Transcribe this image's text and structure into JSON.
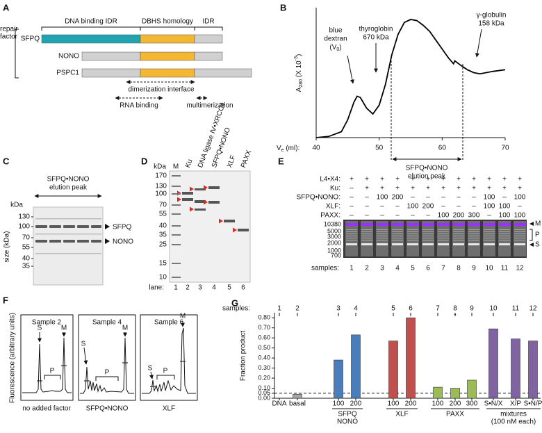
{
  "panels": {
    "A": {
      "label": "A",
      "headers": [
        "DNA binding IDR",
        "DBHS homology",
        "IDR"
      ],
      "group_label": [
        "repair",
        "factor"
      ],
      "proteins": [
        "SFPQ",
        "NONO",
        "PSPC1"
      ],
      "regions": [
        "dimerization interface",
        "RNA binding",
        "multimerization"
      ]
    },
    "C": {
      "label": "C",
      "title": [
        "SFPQ•NONO",
        "elution peak"
      ],
      "unit": "kDa",
      "ylabel": "size (kDa)",
      "markers": [
        130,
        100,
        70,
        55,
        40,
        35
      ],
      "bands": [
        "SFPQ",
        "NONO"
      ]
    },
    "D": {
      "label": "D",
      "unit": "kDa",
      "markers": [
        170,
        130,
        100,
        70,
        55,
        40,
        35,
        25,
        15,
        10
      ],
      "lanes": [
        "M",
        "Ku",
        "DNA ligase IV•XRCC4",
        "SFPQ•NONO",
        "XLF",
        "PAXX"
      ],
      "lane_label": "lane:",
      "lane_numbers": [
        1,
        2,
        3,
        4,
        5,
        6
      ]
    },
    "E": {
      "label": "E",
      "rows": [
        {
          "name": "L4•X4:",
          "cells": [
            "+",
            "+",
            "+",
            "+",
            "+",
            "+",
            "+",
            "+",
            "+",
            "+",
            "+",
            "+"
          ]
        },
        {
          "name": "Ku:",
          "cells": [
            "–",
            "+",
            "+",
            "+",
            "+",
            "+",
            "+",
            "+",
            "+",
            "+",
            "+",
            "+"
          ]
        },
        {
          "name": "SFPQ•NONO:",
          "cells": [
            "–",
            "–",
            100,
            200,
            "–",
            "–",
            "–",
            "–",
            "–",
            100,
            "–",
            100
          ]
        },
        {
          "name": "XLF:",
          "cells": [
            "–",
            "–",
            "–",
            "–",
            100,
            200,
            "–",
            "–",
            "–",
            100,
            100,
            "–"
          ]
        },
        {
          "name": "PAXX:",
          "cells": [
            "–",
            "–",
            "–",
            "–",
            "–",
            "–",
            100,
            200,
            300,
            "–",
            100,
            100
          ]
        }
      ],
      "ladder": [
        10380,
        5000,
        3000,
        2000,
        1000,
        700
      ],
      "bands": [
        "M",
        "P",
        "S"
      ],
      "samples_label": "samples:",
      "samples": [
        1,
        2,
        3,
        4,
        5,
        6,
        7,
        8,
        9,
        10,
        11,
        12
      ]
    },
    "F": {
      "label": "F",
      "ylabel": "Fluorescence (arbitrary units)",
      "traces": [
        {
          "title": "Sample 2",
          "caption": "no added factor"
        },
        {
          "title": "Sample 4",
          "caption": "SFPQ•NONO"
        },
        {
          "title": "Sample 6",
          "caption": "XLF"
        }
      ],
      "peaks": [
        "S",
        "P",
        "M"
      ]
    }
  },
  "chart_data": [
    {
      "label": "B",
      "type": "line",
      "ylabel": [
        "A",
        "280",
        " (X 10",
        "-3",
        ")"
      ],
      "xlabel": [
        "V",
        "e",
        " (ml):"
      ],
      "x": [
        40,
        42,
        44,
        45,
        46,
        46.5,
        47,
        48,
        49,
        50,
        51,
        52,
        53,
        54,
        55,
        56,
        57,
        58,
        59,
        60,
        61,
        61.8,
        62,
        63,
        64,
        65,
        66,
        67,
        68,
        70
      ],
      "values": [
        0,
        0.2,
        1,
        3,
        6,
        7,
        6.8,
        5,
        4,
        5.5,
        9,
        14,
        17.5,
        19.5,
        20,
        19.8,
        19,
        18,
        16.5,
        15,
        13.5,
        12.5,
        13,
        12.2,
        11.5,
        11,
        10.8,
        11,
        11.2,
        11.5
      ],
      "color": "#000000",
      "xlim": [
        40,
        70
      ],
      "xticks": [
        40,
        50,
        60,
        70
      ],
      "ylim": [
        0,
        22
      ],
      "void_marker": {
        "lines": [
          "blue",
          "dextran"
        ],
        "symbol": [
          "(V",
          "0",
          ")"
        ]
      },
      "standards": [
        {
          "lines": [
            "thyroglobin",
            "670 kDa"
          ]
        },
        {
          "lines": [
            "γ-globulin",
            "158 kDa"
          ]
        }
      ],
      "peak_label": [
        "SFPQ•NONO",
        "elution peak"
      ]
    },
    {
      "label": "G",
      "type": "bar",
      "ylabel": "Fraction product",
      "samples_label": "samples:",
      "samples": [
        1,
        2,
        3,
        4,
        5,
        6,
        7,
        8,
        9,
        10,
        11,
        12
      ],
      "sample_note": "-",
      "categories": [
        "DNA",
        "basal",
        "100",
        "200",
        "100",
        "200",
        "100",
        "200",
        "300",
        "S•N/X",
        "X/P",
        "S•N/P"
      ],
      "values": [
        null,
        0.04,
        0.38,
        0.63,
        0.57,
        0.8,
        0.11,
        0.1,
        0.18,
        0.69,
        0.59,
        0.57
      ],
      "colors": [
        null,
        "#a6a6a6",
        "#4a7ebb",
        "#4a7ebb",
        "#c0504d",
        "#c0504d",
        "#9bbb59",
        "#9bbb59",
        "#9bbb59",
        "#8064a2",
        "#8064a2",
        "#8064a2"
      ],
      "groups": [
        {
          "name": [
            "SFPQ",
            "NONO"
          ]
        },
        {
          "name": [
            "XLF"
          ]
        },
        {
          "name": [
            "PAXX"
          ]
        },
        {
          "name": [
            "mixtures",
            "(100 nM each)"
          ]
        }
      ],
      "reference_line": 0.05,
      "ylim": [
        0,
        0.85
      ],
      "yticks": [
        {
          "value": 0,
          "label": "0.00"
        },
        0.05,
        {
          "value": 0.1,
          "label": "0.10"
        },
        {
          "value": 0.2,
          "label": "0.20"
        },
        {
          "value": 0.3,
          "label": "0.30"
        },
        {
          "value": 0.4,
          "label": "0.40"
        },
        {
          "value": 0.5,
          "label": "0.50"
        },
        {
          "value": 0.6,
          "label": "0.60"
        },
        {
          "value": 0.7,
          "label": "0.70"
        },
        {
          "value": 0.8,
          "label": "0.80"
        }
      ]
    }
  ]
}
